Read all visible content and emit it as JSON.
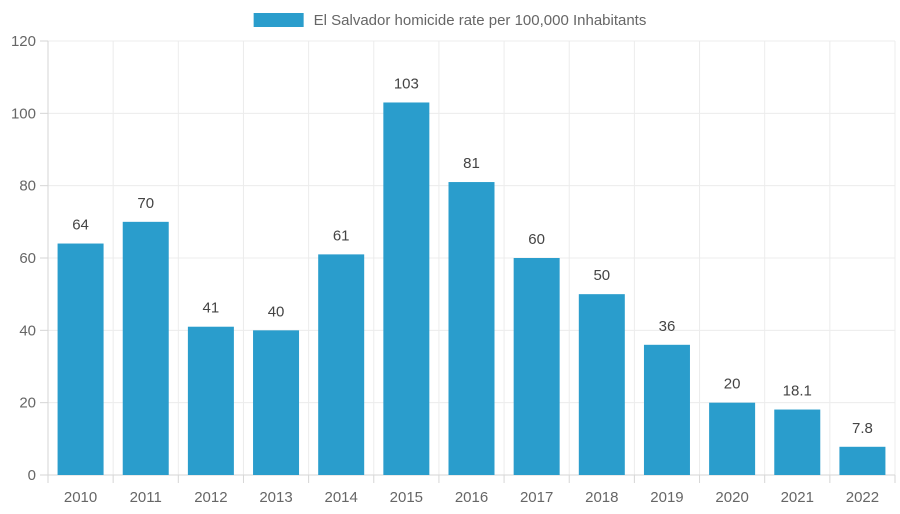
{
  "chart_data": {
    "type": "bar",
    "categories": [
      "2010",
      "2011",
      "2012",
      "2013",
      "2014",
      "2015",
      "2016",
      "2017",
      "2018",
      "2019",
      "2020",
      "2021",
      "2022"
    ],
    "series": [
      {
        "name": "El Salvador homicide rate per 100,000 Inhabitants",
        "values": [
          64,
          70,
          41,
          40,
          61,
          103,
          81,
          60,
          50,
          36,
          20,
          18.1,
          7.8
        ],
        "data_labels": [
          "64",
          "70",
          "41",
          "40",
          "61",
          "103",
          "81",
          "60",
          "50",
          "36",
          "20",
          "18.1",
          "7.8"
        ]
      }
    ],
    "ylim": [
      0,
      120
    ],
    "yticks": [
      0,
      20,
      40,
      60,
      80,
      100,
      120
    ],
    "grid": true,
    "legend_position": "top-center",
    "colors": {
      "bar": "#2a9dcc"
    }
  }
}
